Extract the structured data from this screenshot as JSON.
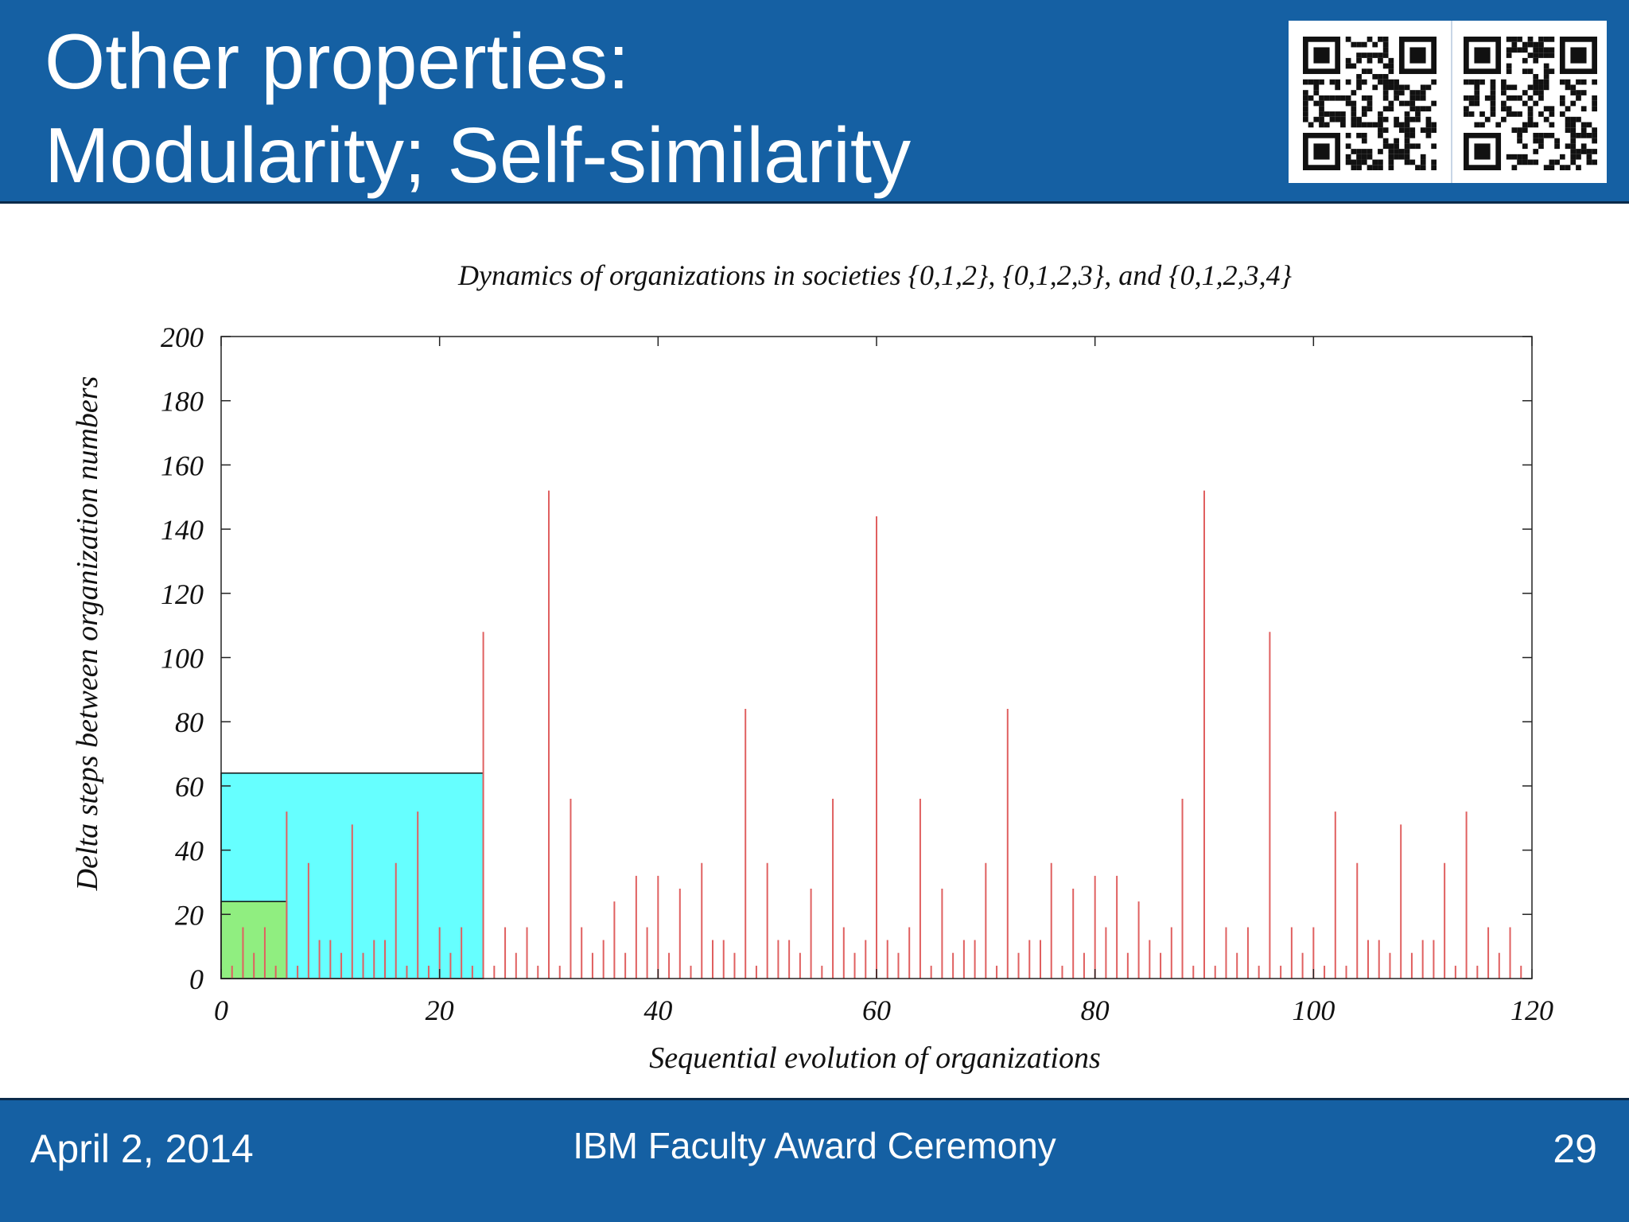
{
  "slide": {
    "title_lines": [
      "Other properties:",
      "Modularity; Self-similarity"
    ],
    "footer": {
      "date": "April 2, 2014",
      "event": "IBM Faculty Award Ceremony",
      "page": "29"
    }
  },
  "qr_codes": {
    "icons": [
      "qr-code-icon",
      "qr-code-icon"
    ]
  },
  "colors": {
    "header_bg": "#1560a3",
    "stem": "#e06060",
    "green_region": "#90ee80",
    "cyan_region": "#66ffff"
  },
  "chart_data": {
    "type": "bar",
    "title": "Dynamics of organizations in societies {0,1,2}, {0,1,2,3}, and {0,1,2,3,4}",
    "xlabel": "Sequential evolution of organizations",
    "ylabel": "Delta steps between organization numbers",
    "xlim": [
      0,
      120
    ],
    "ylim": [
      0,
      200
    ],
    "xticks": [
      0,
      20,
      40,
      60,
      80,
      100,
      120
    ],
    "yticks": [
      0,
      20,
      40,
      60,
      80,
      100,
      120,
      140,
      160,
      180,
      200
    ],
    "highlight_regions": [
      {
        "society": "{0,1,2,3}",
        "x": [
          0,
          24
        ],
        "y": [
          0,
          64
        ],
        "color": "#66ffff"
      },
      {
        "society": "{0,1,2}",
        "x": [
          0,
          6
        ],
        "y": [
          0,
          24
        ],
        "color": "#90ee80"
      }
    ],
    "series": [
      {
        "x": [
          1,
          2,
          3,
          4,
          5,
          6,
          7,
          8,
          9,
          10,
          11,
          12,
          13,
          14,
          15,
          16,
          17,
          18,
          19,
          20,
          21,
          22,
          23,
          24,
          25,
          26,
          27,
          28,
          29,
          30,
          31,
          32,
          33,
          34,
          35,
          36,
          37,
          38,
          39,
          40,
          41,
          42,
          43,
          44,
          45,
          46,
          47,
          48,
          49,
          50,
          51,
          52,
          53,
          54,
          55,
          56,
          57,
          58,
          59,
          60,
          61,
          62,
          63,
          64,
          65,
          66,
          67,
          68,
          69,
          70,
          71,
          72,
          73,
          74,
          75,
          76,
          77,
          78,
          79,
          80,
          81,
          82,
          83,
          84,
          85,
          86,
          87,
          88,
          89,
          90,
          91,
          92,
          93,
          94,
          95,
          96,
          97,
          98,
          99,
          100,
          101,
          102,
          103,
          104,
          105,
          106,
          107,
          108,
          109,
          110,
          111,
          112,
          113,
          114,
          115,
          116,
          117,
          118,
          119
        ],
        "values": [
          4,
          16,
          8,
          16,
          4,
          52,
          4,
          36,
          12,
          12,
          8,
          48,
          8,
          12,
          12,
          36,
          4,
          52,
          4,
          16,
          8,
          16,
          4,
          108,
          4,
          16,
          8,
          16,
          4,
          152,
          4,
          56,
          16,
          8,
          12,
          24,
          8,
          32,
          16,
          32,
          8,
          28,
          4,
          36,
          12,
          12,
          8,
          84,
          4,
          36,
          12,
          12,
          8,
          28,
          4,
          56,
          16,
          8,
          12,
          144,
          12,
          8,
          16,
          56,
          4,
          28,
          8,
          12,
          12,
          36,
          4,
          84,
          8,
          12,
          12,
          36,
          4,
          28,
          8,
          32,
          16,
          32,
          8,
          24,
          12,
          8,
          16,
          56,
          4,
          152,
          4,
          16,
          8,
          16,
          4,
          108,
          4,
          16,
          8,
          16,
          4,
          52,
          4,
          36,
          12,
          12,
          8,
          48,
          8,
          12,
          12,
          36,
          4,
          52,
          4,
          16,
          8,
          16,
          4
        ]
      }
    ],
    "grid": false,
    "legend": "none"
  }
}
